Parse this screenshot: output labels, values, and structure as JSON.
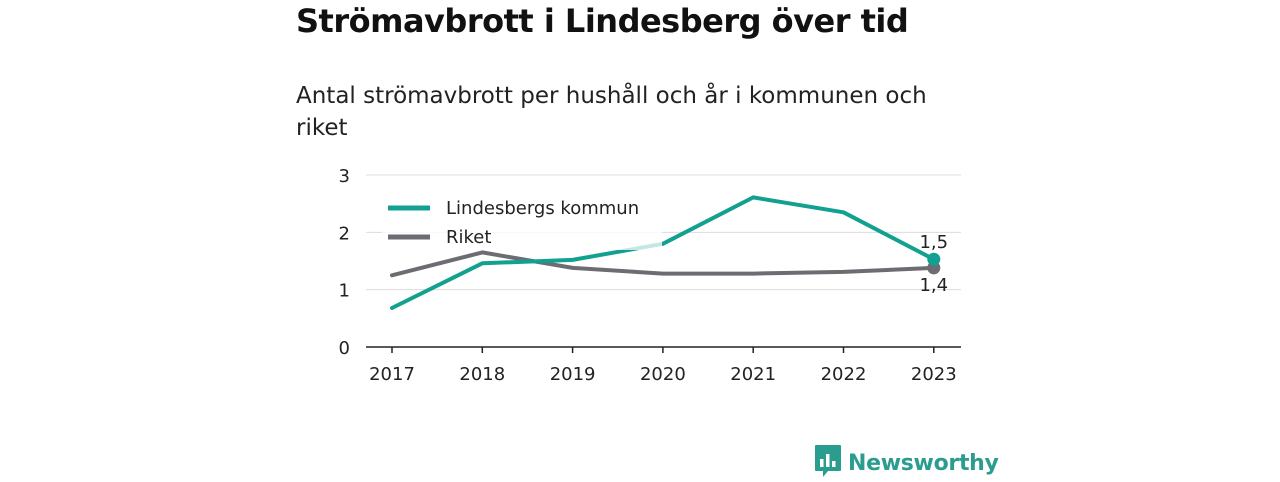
{
  "title": "Strömavbrott i Lindesberg över tid",
  "subtitle": "Antal strömavbrott per hushåll och år i kommunen och riket",
  "brand": {
    "name": "Newsworthy",
    "icon": "bar-chart-logo-icon",
    "color": "#2a9d8f"
  },
  "chart_data": {
    "type": "line",
    "categories": [
      "2017",
      "2018",
      "2019",
      "2020",
      "2021",
      "2022",
      "2023"
    ],
    "ylim": [
      0,
      3
    ],
    "yticks": [
      "0",
      "1",
      "2",
      "3"
    ],
    "grid": true,
    "legend_position": "top-left",
    "series": [
      {
        "name": "Lindesbergs kommun",
        "color": "#12a091",
        "values": [
          0.68,
          1.46,
          1.52,
          1.8,
          2.61,
          2.35,
          1.53
        ],
        "end_label": "1,5"
      },
      {
        "name": "Riket",
        "color": "#6d6c73",
        "values": [
          1.25,
          1.65,
          1.38,
          1.28,
          1.28,
          1.31,
          1.38
        ],
        "end_label": "1,4"
      }
    ]
  }
}
